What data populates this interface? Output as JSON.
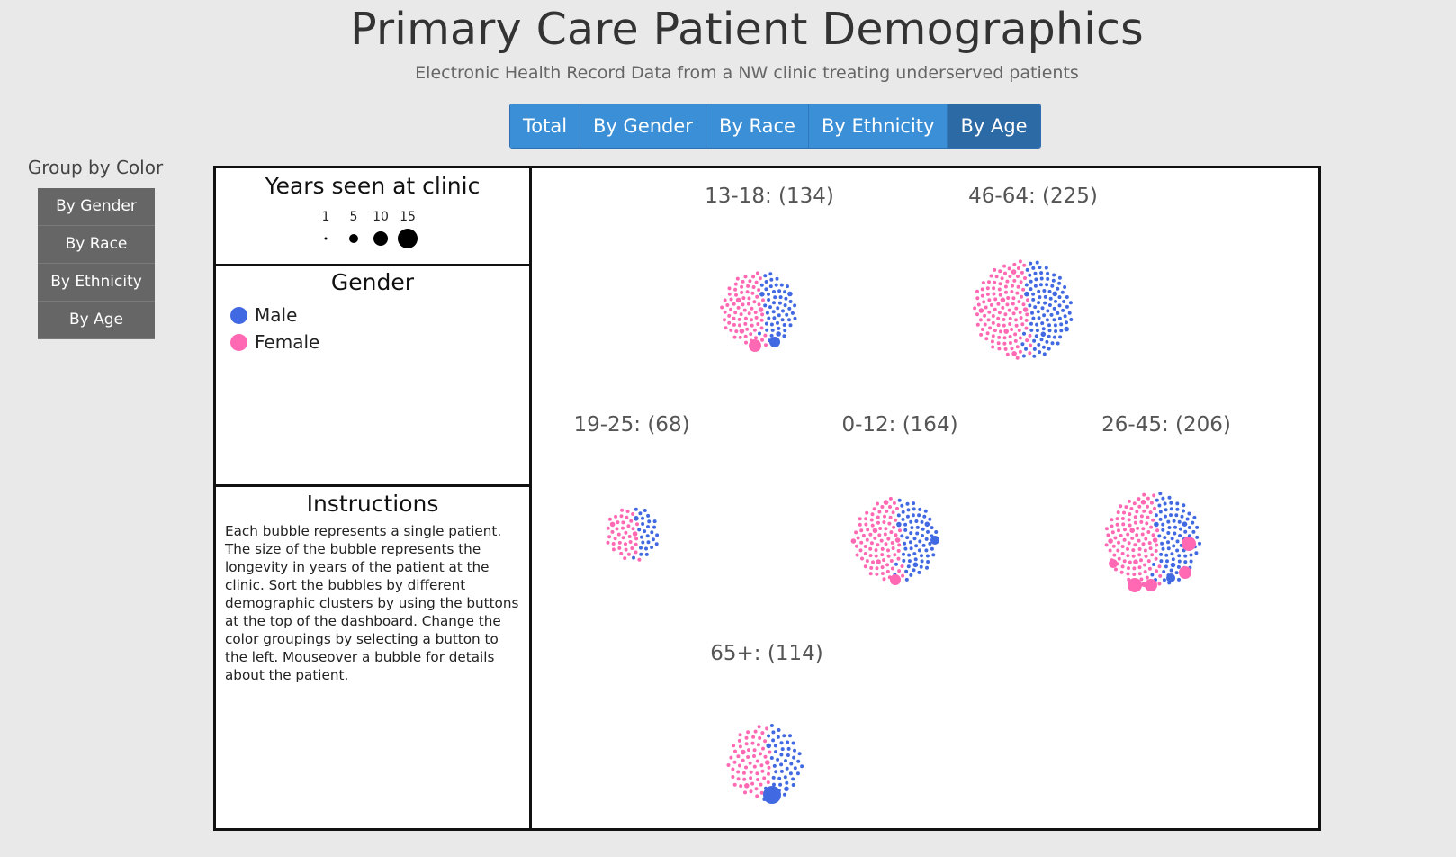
{
  "header": {
    "title": "Primary Care Patient Demographics",
    "subtitle": "Electronic Health Record Data from a NW clinic treating underserved patients"
  },
  "top_nav": {
    "tabs": [
      {
        "label": "Total",
        "active": false
      },
      {
        "label": "By Gender",
        "active": false
      },
      {
        "label": "By Race",
        "active": false
      },
      {
        "label": "By Ethnicity",
        "active": false
      },
      {
        "label": "By Age",
        "active": true
      }
    ]
  },
  "color_group": {
    "title": "Group by Color",
    "buttons": [
      "By Gender",
      "By Race",
      "By Ethnicity",
      "By Age"
    ]
  },
  "size_legend": {
    "title": "Years seen at clinic",
    "values": [
      "1",
      "5",
      "10",
      "15"
    ]
  },
  "gender_legend": {
    "title": "Gender",
    "items": [
      {
        "label": "Male",
        "color": "#4169e1"
      },
      {
        "label": "Female",
        "color": "#ff69b4"
      }
    ]
  },
  "instructions": {
    "title": "Instructions",
    "text": "Each bubble represents a single patient. The size of the bubble represents the longevity in years of the patient at the clinic. Sort the bubbles by different demographic clusters by using the buttons at the top of the dashboard. Change the color groupings by selecting a button to the left. Mouseover a bubble for details about the patient."
  },
  "clusters": [
    {
      "label": "13-18: (134)",
      "count": 134
    },
    {
      "label": "46-64: (225)",
      "count": 225
    },
    {
      "label": "19-25: (68)",
      "count": 68
    },
    {
      "label": "0-12: (164)",
      "count": 164
    },
    {
      "label": "26-45: (206)",
      "count": 206
    },
    {
      "label": "65+: (114)",
      "count": 114
    }
  ],
  "colors": {
    "male": "#4169e1",
    "female": "#ff69b4",
    "nav_active": "#2c6aa5",
    "nav": "#3a8fd6",
    "side_button": "#666666"
  }
}
